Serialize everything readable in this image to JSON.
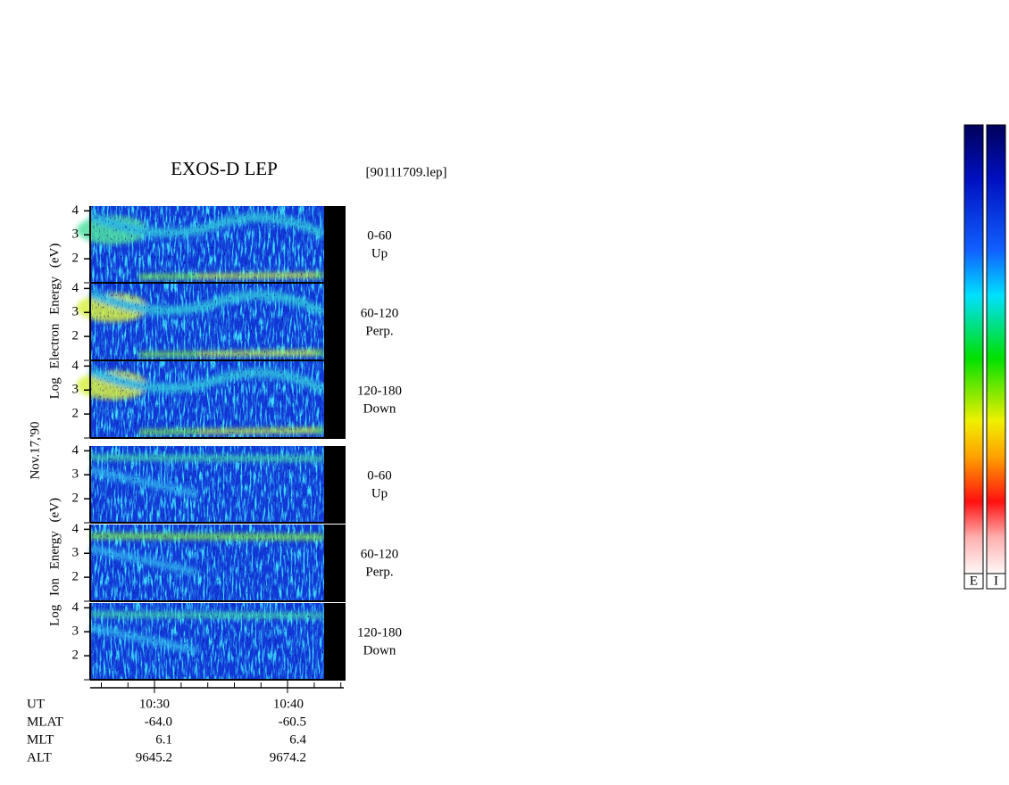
{
  "title": "EXOS-D LEP",
  "file": "[90111709.lep]",
  "date": "Nov.17,'90",
  "electron_axis_label": "Log Electron Energy (eV)",
  "ion_axis_label": "Log Ion Energy (eV)",
  "panels": [
    {
      "species": "electron",
      "angle": "0-60",
      "direction": "Up",
      "ylim": [
        1,
        4.2
      ],
      "yticks": [
        2,
        3,
        4
      ]
    },
    {
      "species": "electron",
      "angle": "60-120",
      "direction": "Perp.",
      "ylim": [
        1,
        4.2
      ],
      "yticks": [
        2,
        3,
        4
      ]
    },
    {
      "species": "electron",
      "angle": "120-180",
      "direction": "Down",
      "ylim": [
        1,
        4.2
      ],
      "yticks": [
        2,
        3,
        4
      ]
    },
    {
      "species": "ion",
      "angle": "0-60",
      "direction": "Up",
      "ylim": [
        1,
        4.2
      ],
      "yticks": [
        2,
        3,
        4
      ]
    },
    {
      "species": "ion",
      "angle": "60-120",
      "direction": "Perp.",
      "ylim": [
        1,
        4.2
      ],
      "yticks": [
        2,
        3,
        4
      ]
    },
    {
      "species": "ion",
      "angle": "120-180",
      "direction": "Down",
      "ylim": [
        1,
        4.2
      ],
      "yticks": [
        2,
        3,
        4
      ]
    }
  ],
  "time_axis": {
    "labels": [
      "10:30",
      "10:40"
    ]
  },
  "ephemeris": [
    {
      "label": "UT"
    },
    {
      "label": "MLAT",
      "values": [
        "-64.0",
        "-60.5"
      ]
    },
    {
      "label": "MLT",
      "values": [
        "6.1",
        "6.4"
      ]
    },
    {
      "label": "ALT",
      "values": [
        "9645.2",
        "9674.2"
      ]
    }
  ],
  "colorbars": [
    "E",
    "I"
  ]
}
